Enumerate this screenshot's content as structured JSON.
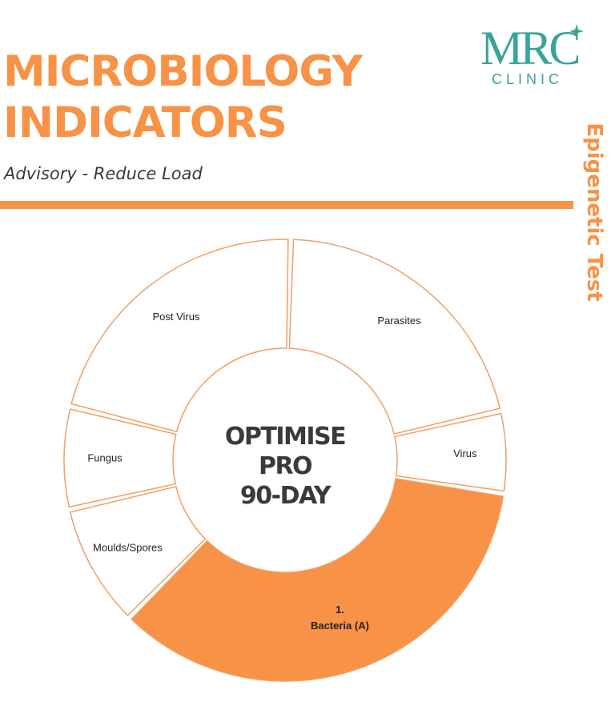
{
  "header": {
    "title_line1": "MICROBIOLOGY",
    "title_line2": "INDICATORS",
    "subtitle": "Advisory - Reduce Load",
    "side_label": "Epigenetic Test"
  },
  "logo": {
    "mark": "MRC",
    "sub": "CLINIC"
  },
  "colors": {
    "accent": "#f79246",
    "teal": "#3aa39a",
    "segment_outline": "#f0a064",
    "text_dark": "#3a3a3a"
  },
  "chart_data": {
    "type": "pie",
    "variant": "donut",
    "title": "",
    "center_text": [
      "OPTIMISE",
      "PRO",
      "90-DAY"
    ],
    "slices": [
      {
        "label": "Parasites",
        "value": 21.0,
        "highlighted": false
      },
      {
        "label": "Virus",
        "value": 6.0,
        "highlighted": false
      },
      {
        "label": "Bacteria (A)",
        "rank": "1.",
        "value": 35.0,
        "highlighted": true
      },
      {
        "label": "Moulds/Spores",
        "value": 9.0,
        "highlighted": false
      },
      {
        "label": "Fungus",
        "value": 7.5,
        "highlighted": false
      },
      {
        "label": "Post Virus",
        "value": 21.5,
        "highlighted": false
      }
    ]
  }
}
